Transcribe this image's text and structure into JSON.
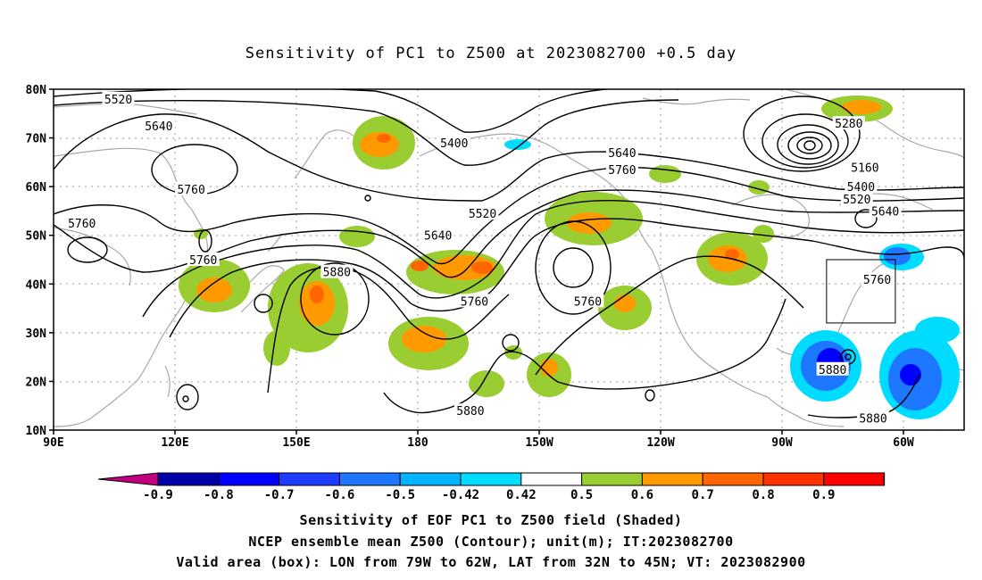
{
  "title": "Sensitivity of PC1 to Z500 at 2023082700 +0.5 day",
  "lat_labels": [
    {
      "label": "80N",
      "lat": 80
    },
    {
      "label": "70N",
      "lat": 70
    },
    {
      "label": "60N",
      "lat": 60
    },
    {
      "label": "50N",
      "lat": 50
    },
    {
      "label": "40N",
      "lat": 40
    },
    {
      "label": "30N",
      "lat": 30
    },
    {
      "label": "20N",
      "lat": 20
    },
    {
      "label": "10N",
      "lat": 10
    }
  ],
  "lon_labels": [
    {
      "label": "90E",
      "lon": 90
    },
    {
      "label": "120E",
      "lon": 120
    },
    {
      "label": "150E",
      "lon": 150
    },
    {
      "label": "180",
      "lon": 180
    },
    {
      "label": "150W",
      "lon": 210
    },
    {
      "label": "120W",
      "lon": 240
    },
    {
      "label": "90W",
      "lon": 270
    },
    {
      "label": "60W",
      "lon": 300
    }
  ],
  "contour_labels": [
    {
      "text": "5520",
      "lon": 106,
      "lat": 78
    },
    {
      "text": "5640",
      "lon": 116,
      "lat": 72.5
    },
    {
      "text": "5760",
      "lon": 124,
      "lat": 59.5
    },
    {
      "text": "5760",
      "lon": 97,
      "lat": 52.5
    },
    {
      "text": "5760",
      "lon": 127,
      "lat": 45
    },
    {
      "text": "5880",
      "lon": 160,
      "lat": 42.5
    },
    {
      "text": "5400",
      "lon": 189,
      "lat": 69
    },
    {
      "text": "5520",
      "lon": 196,
      "lat": 54.5
    },
    {
      "text": "5640",
      "lon": 185,
      "lat": 50
    },
    {
      "text": "5760",
      "lon": 194,
      "lat": 36.5
    },
    {
      "text": "5640",
      "lon": 230.5,
      "lat": 67
    },
    {
      "text": "5760",
      "lon": 230.5,
      "lat": 63.5
    },
    {
      "text": "5760",
      "lon": 222,
      "lat": 36.5
    },
    {
      "text": "5880",
      "lon": 193,
      "lat": 14
    },
    {
      "text": "5880",
      "lon": 282.5,
      "lat": 22.5
    },
    {
      "text": "5280",
      "lon": 286.5,
      "lat": 73
    },
    {
      "text": "5160",
      "lon": 290.5,
      "lat": 64
    },
    {
      "text": "5400",
      "lon": 289.5,
      "lat": 60
    },
    {
      "text": "5520",
      "lon": 288.5,
      "lat": 57.5
    },
    {
      "text": "5640",
      "lon": 295.5,
      "lat": 55
    },
    {
      "text": "5760",
      "lon": 293.5,
      "lat": 41
    },
    {
      "text": "5880",
      "lon": 292.5,
      "lat": 12.5
    }
  ],
  "valid_box": {
    "lon_w": 79,
    "lon_e": 62,
    "lat_s": 32,
    "lat_n": 45
  },
  "colorbar": {
    "colors": [
      "#c0007f",
      "#0000a8",
      "#0000ff",
      "#1e3cff",
      "#1e78ff",
      "#00b4ff",
      "#00dcff",
      "#ffffff",
      "#9acd32",
      "#ff9900",
      "#ff6600",
      "#ff3300",
      "#ff0000",
      "#ff99cc"
    ],
    "labels": [
      "-0.9",
      "-0.8",
      "-0.7",
      "-0.6",
      "-0.5",
      "-0.42",
      "0.42",
      "0.5",
      "0.6",
      "0.7",
      "0.8",
      "0.9"
    ]
  },
  "captions": [
    "Sensitivity of EOF PC1 to Z500 field (Shaded)",
    "NCEP ensemble mean Z500 (Contour); unit(m); IT:2023082700",
    "Valid area (box): LON from 79W to 62W, LAT from 32N to 45N; VT: 2023082900"
  ]
}
